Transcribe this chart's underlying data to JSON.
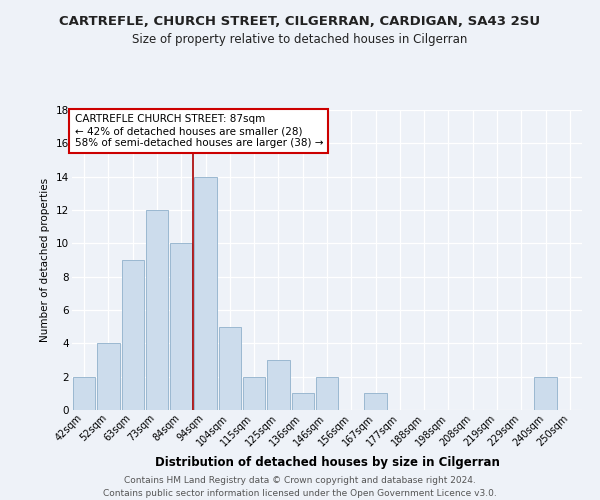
{
  "title": "CARTREFLE, CHURCH STREET, CILGERRAN, CARDIGAN, SA43 2SU",
  "subtitle": "Size of property relative to detached houses in Cilgerran",
  "xlabel": "Distribution of detached houses by size in Cilgerran",
  "ylabel": "Number of detached properties",
  "categories": [
    "42sqm",
    "52sqm",
    "63sqm",
    "73sqm",
    "84sqm",
    "94sqm",
    "104sqm",
    "115sqm",
    "125sqm",
    "136sqm",
    "146sqm",
    "156sqm",
    "167sqm",
    "177sqm",
    "188sqm",
    "198sqm",
    "208sqm",
    "219sqm",
    "229sqm",
    "240sqm",
    "250sqm"
  ],
  "values": [
    2,
    4,
    9,
    12,
    10,
    14,
    5,
    2,
    3,
    1,
    2,
    0,
    1,
    0,
    0,
    0,
    0,
    0,
    0,
    2,
    0
  ],
  "bar_color": "#ccdcec",
  "bar_edge_color": "#9ab8d0",
  "vline_x": 4.5,
  "vline_color": "#aa0000",
  "ylim": [
    0,
    18
  ],
  "yticks": [
    0,
    2,
    4,
    6,
    8,
    10,
    12,
    14,
    16,
    18
  ],
  "annotation_title": "CARTREFLE CHURCH STREET: 87sqm",
  "annotation_line1": "← 42% of detached houses are smaller (28)",
  "annotation_line2": "58% of semi-detached houses are larger (38) →",
  "annotation_box_color": "#ffffff",
  "annotation_box_edge_color": "#cc0000",
  "footer_line1": "Contains HM Land Registry data © Crown copyright and database right 2024.",
  "footer_line2": "Contains public sector information licensed under the Open Government Licence v3.0.",
  "background_color": "#eef2f8",
  "grid_color": "#ffffff",
  "title_fontsize": 9.5,
  "subtitle_fontsize": 8.5,
  "ylabel_fontsize": 7.5,
  "xlabel_fontsize": 8.5,
  "tick_fontsize": 7,
  "annotation_fontsize": 7.5,
  "footer_fontsize": 6.5
}
